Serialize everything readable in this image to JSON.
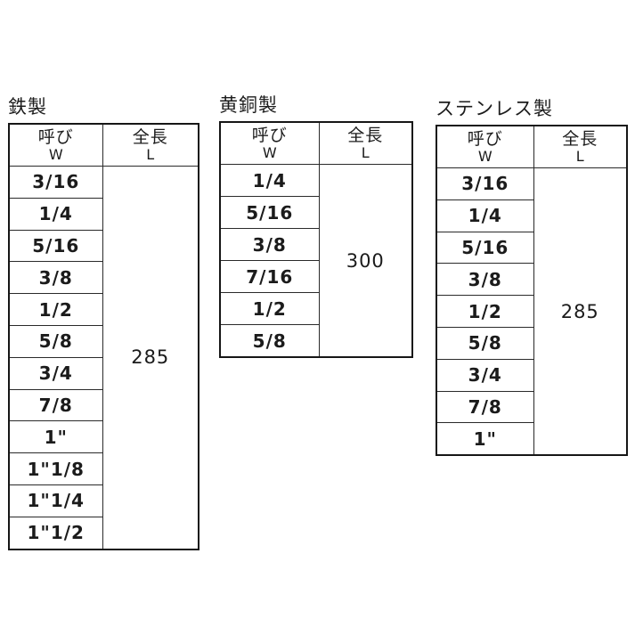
{
  "page": {
    "background_color": "#ffffff",
    "border_color": "#1c1c1c",
    "text_color": "#1b1b1b"
  },
  "tables": [
    {
      "title": "鉄製",
      "header": {
        "nominal_label": "呼び",
        "nominal_symbol": "W",
        "length_label": "全長",
        "length_symbol": "L"
      },
      "rows": [
        "3/16",
        "1/4",
        "5/16",
        "3/8",
        "1/2",
        "5/8",
        "3/4",
        "7/8",
        "1\"",
        "1\"1/8",
        "1\"1/4",
        "1\"1/2"
      ],
      "length_value": "285"
    },
    {
      "title": "黄銅製",
      "header": {
        "nominal_label": "呼び",
        "nominal_symbol": "W",
        "length_label": "全長",
        "length_symbol": "L"
      },
      "rows": [
        "1/4",
        "5/16",
        "3/8",
        "7/16",
        "1/2",
        "5/8"
      ],
      "length_value": "300"
    },
    {
      "title": "ステンレス製",
      "header": {
        "nominal_label": "呼び",
        "nominal_symbol": "W",
        "length_label": "全長",
        "length_symbol": "L"
      },
      "rows": [
        "3/16",
        "1/4",
        "5/16",
        "3/8",
        "1/2",
        "5/8",
        "3/4",
        "7/8",
        "1\""
      ],
      "length_value": "285"
    }
  ]
}
